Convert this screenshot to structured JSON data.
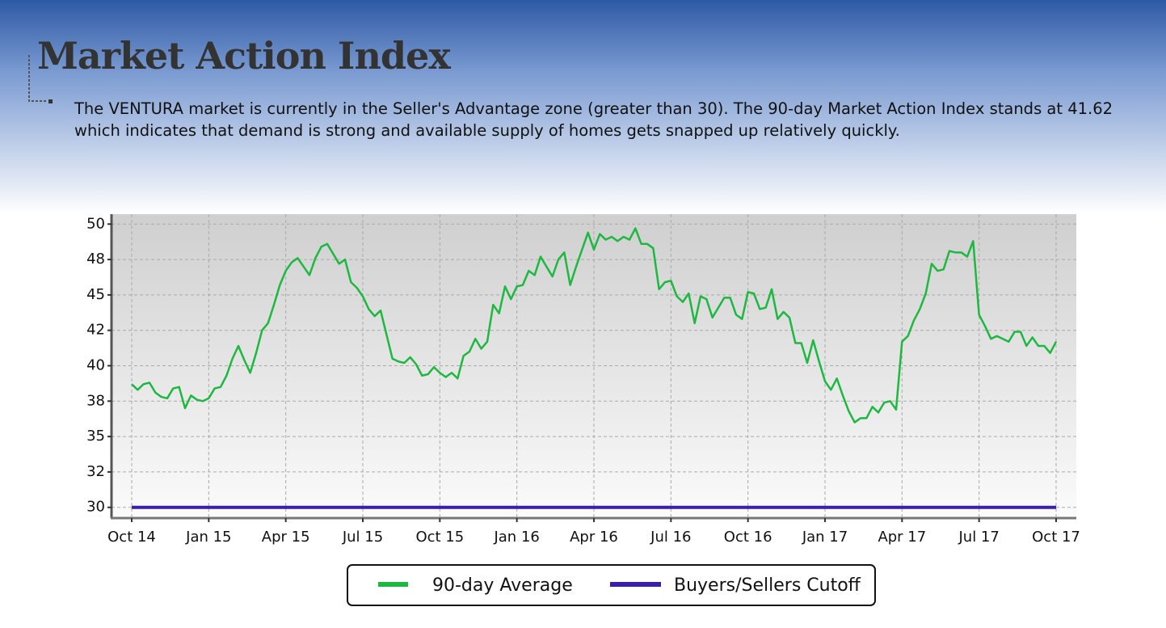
{
  "header": {
    "title": "Market Action Index",
    "description": "The VENTURA market is currently in the Seller's Advantage zone (greater than 30). The 90-day Market Action Index stands at 41.62 which indicates that demand is strong and available supply of homes gets snapped up relatively quickly."
  },
  "chart_data": {
    "type": "line",
    "categories": [
      "Oct 14",
      null,
      null,
      null,
      null,
      null,
      null,
      null,
      null,
      null,
      null,
      null,
      null,
      "Jan 15",
      null,
      null,
      null,
      null,
      null,
      null,
      null,
      null,
      null,
      null,
      null,
      null,
      "Apr 15",
      null,
      null,
      null,
      null,
      null,
      null,
      null,
      null,
      null,
      null,
      null,
      null,
      "Jul 15",
      null,
      null,
      null,
      null,
      null,
      null,
      null,
      null,
      null,
      null,
      null,
      null,
      "Oct 15",
      null,
      null,
      null,
      null,
      null,
      null,
      null,
      null,
      null,
      null,
      null,
      null,
      "Jan 16",
      null,
      null,
      null,
      null,
      null,
      null,
      null,
      null,
      null,
      null,
      null,
      null,
      "Apr 16",
      null,
      null,
      null,
      null,
      null,
      null,
      null,
      null,
      null,
      null,
      null,
      null,
      "Jul 16",
      null,
      null,
      null,
      null,
      null,
      null,
      null,
      null,
      null,
      null,
      null,
      null,
      "Oct 16",
      null,
      null,
      null,
      null,
      null,
      null,
      null,
      null,
      null,
      null,
      null,
      null,
      "Jan 17",
      null,
      null,
      null,
      null,
      null,
      null,
      null,
      null,
      null,
      null,
      null,
      null,
      "Apr 17",
      null,
      null,
      null,
      null,
      null,
      null,
      null,
      null,
      null,
      null,
      null,
      null,
      "Jul 17",
      null,
      null,
      null,
      null,
      null,
      null,
      null,
      null,
      null,
      null,
      null,
      null,
      "Oct 17"
    ],
    "series": [
      {
        "name": "90-day Average",
        "color": "#1db83f",
        "values": [
          38.7,
          38.3,
          38.7,
          38.8,
          38.1,
          37.8,
          37.7,
          38.4,
          38.5,
          37.0,
          37.9,
          37.6,
          37.5,
          37.7,
          38.4,
          38.5,
          39.3,
          40.5,
          41.4,
          40.4,
          39.5,
          40.9,
          42.5,
          43.0,
          44.3,
          45.7,
          46.7,
          47.3,
          47.6,
          47.0,
          46.4,
          47.6,
          48.4,
          48.6,
          47.9,
          47.2,
          47.5,
          45.9,
          45.5,
          44.9,
          44.0,
          43.5,
          43.9,
          42.2,
          40.5,
          40.3,
          40.2,
          40.6,
          40.1,
          39.3,
          39.4,
          39.9,
          39.5,
          39.2,
          39.5,
          39.1,
          40.7,
          41.0,
          41.9,
          41.2,
          41.7,
          44.3,
          43.7,
          45.6,
          44.7,
          45.6,
          45.7,
          46.7,
          46.4,
          47.7,
          47.0,
          46.3,
          47.5,
          48.0,
          45.7,
          47.0,
          48.2,
          49.4,
          48.2,
          49.3,
          48.9,
          49.1,
          48.8,
          49.1,
          48.9,
          49.7,
          48.6,
          48.6,
          48.3,
          45.4,
          45.9,
          46.0,
          44.9,
          44.5,
          45.1,
          43.0,
          44.9,
          44.7,
          43.4,
          44.1,
          44.8,
          44.8,
          43.6,
          43.3,
          45.2,
          45.1,
          44.0,
          44.1,
          45.4,
          43.3,
          43.8,
          43.4,
          41.6,
          41.6,
          40.2,
          41.8,
          40.3,
          38.9,
          38.3,
          39.1,
          37.9,
          36.8,
          36.0,
          36.3,
          36.3,
          37.1,
          36.7,
          37.4,
          37.5,
          36.9,
          41.7,
          42.1,
          43.2,
          44.0,
          45.1,
          47.2,
          46.7,
          46.8,
          48.1,
          48.0,
          48.0,
          47.7,
          48.8,
          43.6,
          42.8,
          41.9,
          42.1,
          41.9,
          41.7,
          42.4,
          42.4,
          41.4,
          42.0,
          41.4,
          41.4,
          40.9,
          41.7
        ]
      }
    ],
    "cutoff": {
      "name": "Buyers/Sellers Cutoff",
      "value": 30,
      "color": "#3a1fa8"
    },
    "ylim": [
      29.3,
      50.7
    ],
    "yticks": [
      30,
      {
        "value": 32.5,
        "label": "32"
      },
      35,
      {
        "value": 37.5,
        "label": "38"
      },
      40,
      {
        "value": 42.5,
        "label": "42"
      },
      45,
      {
        "value": 47.5,
        "label": "48"
      },
      50
    ],
    "grid": true
  }
}
